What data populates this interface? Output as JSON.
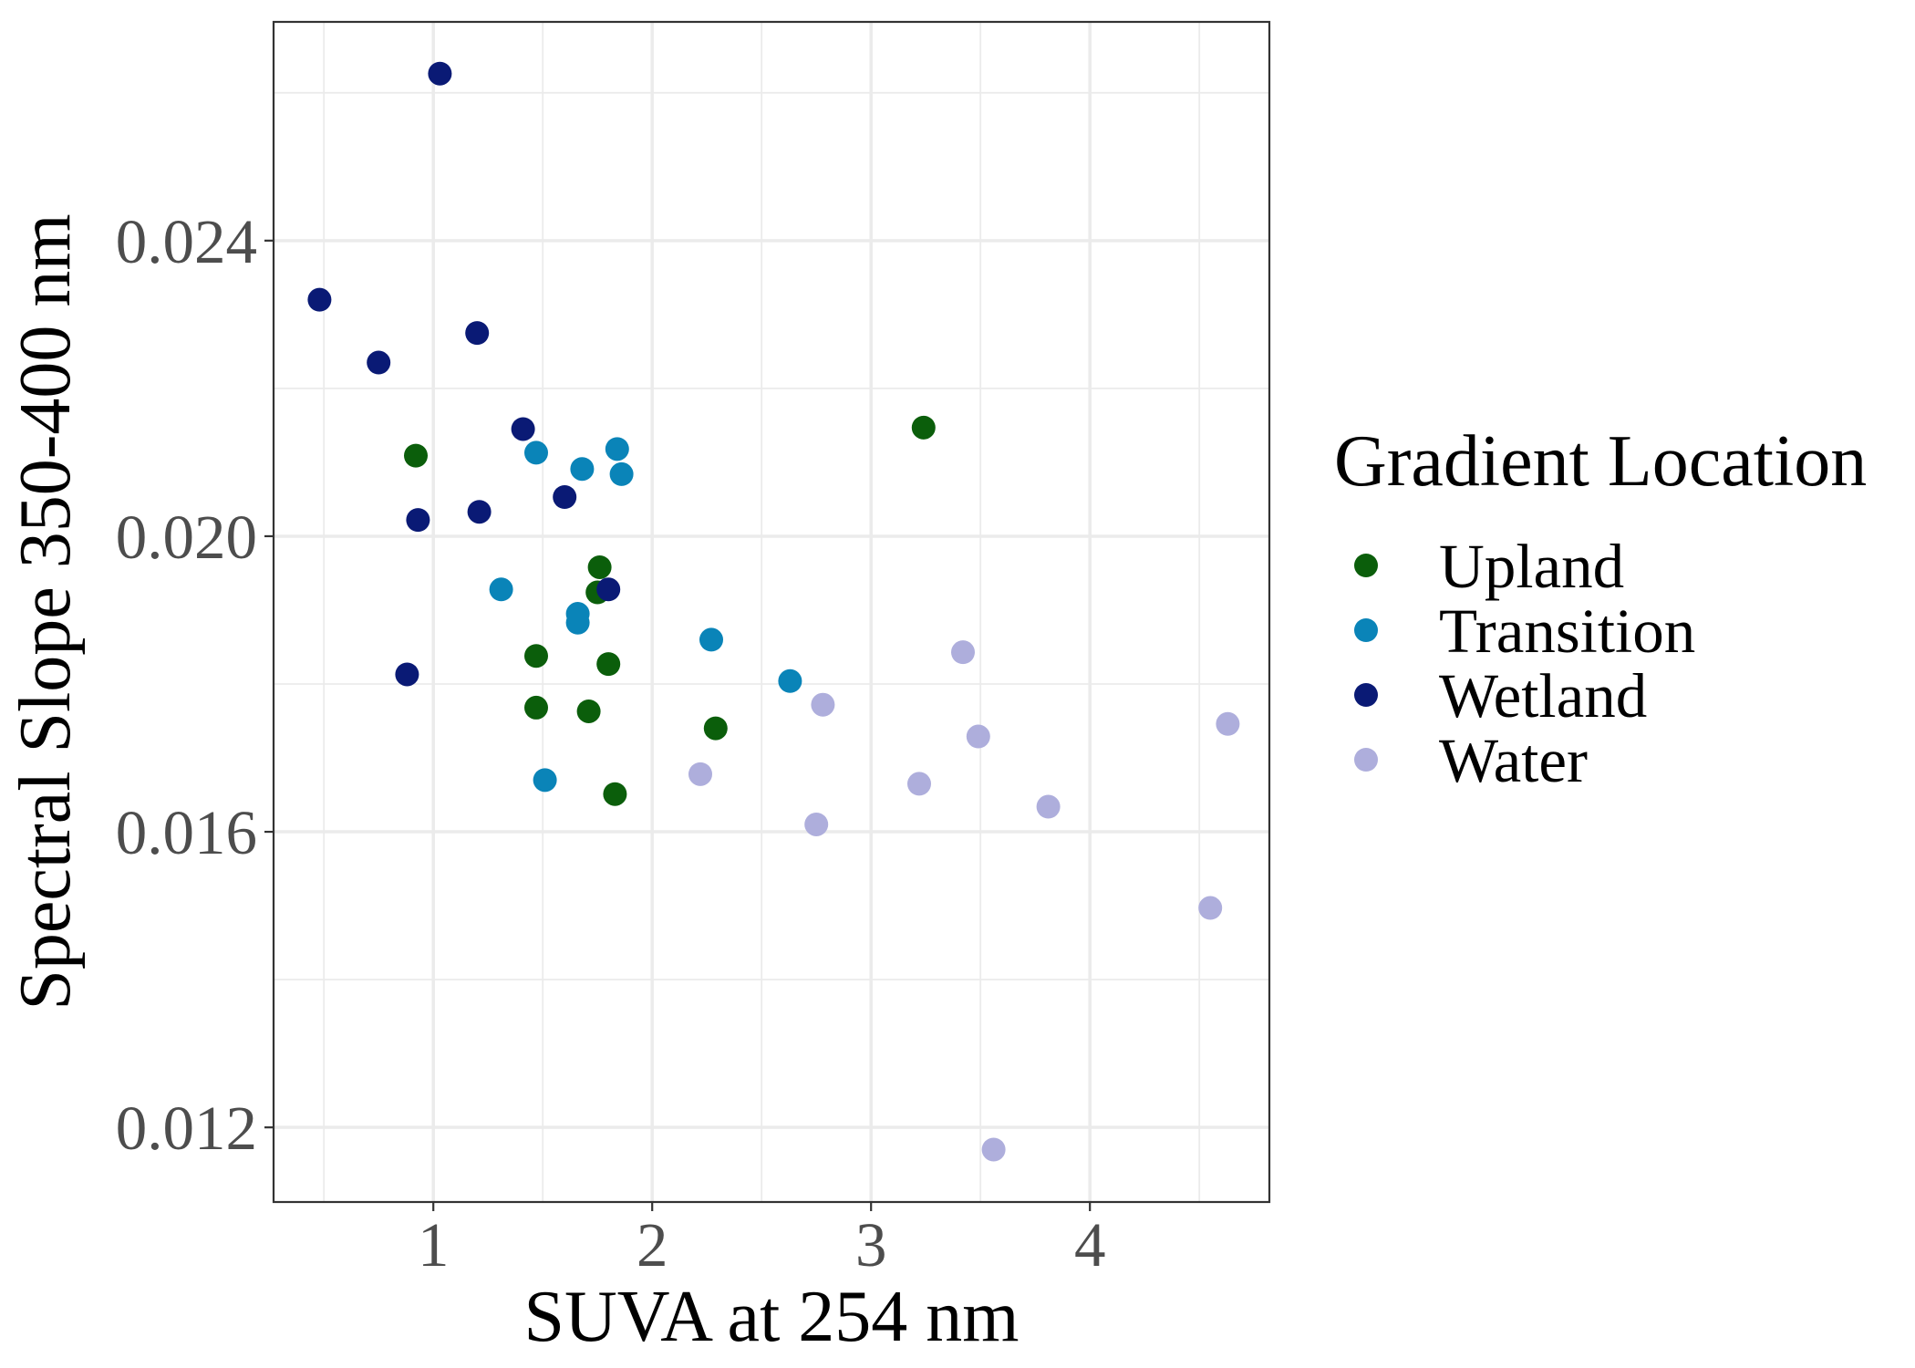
{
  "chart_data": {
    "type": "scatter",
    "title": "",
    "xlabel": "SUVA at 254 nm",
    "ylabel": "Spectral Slope 350-400 nm",
    "xlim": [
      0.27,
      4.82
    ],
    "ylim": [
      0.01099,
      0.02696
    ],
    "x_ticks": [
      1,
      2,
      3,
      4
    ],
    "x_tick_labels": [
      "1",
      "2",
      "3",
      "4"
    ],
    "x_minor_ticks": [
      0.5,
      1.5,
      2.5,
      3.5,
      4.5
    ],
    "y_ticks": [
      0.012,
      0.016,
      0.02,
      0.024
    ],
    "y_tick_labels": [
      "0.012",
      "0.016",
      "0.020",
      "0.024"
    ],
    "y_minor_ticks": [
      0.014,
      0.018,
      0.022,
      0.026
    ],
    "grid": true,
    "legend": {
      "title": "Gradient Location",
      "placement": "right"
    },
    "series": [
      {
        "name": "Upland",
        "color": "#0b5e0b",
        "points": [
          {
            "x": 0.92,
            "y": 0.02109
          },
          {
            "x": 1.47,
            "y": 0.01838
          },
          {
            "x": 1.47,
            "y": 0.01768
          },
          {
            "x": 1.71,
            "y": 0.01763
          },
          {
            "x": 1.75,
            "y": 0.01924
          },
          {
            "x": 1.76,
            "y": 0.01958
          },
          {
            "x": 1.8,
            "y": 0.01827
          },
          {
            "x": 1.83,
            "y": 0.01651
          },
          {
            "x": 2.29,
            "y": 0.0174
          },
          {
            "x": 3.24,
            "y": 0.02147
          }
        ]
      },
      {
        "name": "Transition",
        "color": "#0a84b8",
        "points": [
          {
            "x": 1.31,
            "y": 0.01928
          },
          {
            "x": 1.47,
            "y": 0.02113
          },
          {
            "x": 1.51,
            "y": 0.0167
          },
          {
            "x": 1.66,
            "y": 0.01883
          },
          {
            "x": 1.66,
            "y": 0.01895
          },
          {
            "x": 1.68,
            "y": 0.02091
          },
          {
            "x": 1.84,
            "y": 0.02118
          },
          {
            "x": 1.86,
            "y": 0.02084
          },
          {
            "x": 2.27,
            "y": 0.0186
          },
          {
            "x": 2.63,
            "y": 0.01804
          }
        ]
      },
      {
        "name": "Wetland",
        "color": "#0a1a75",
        "points": [
          {
            "x": 0.48,
            "y": 0.0232
          },
          {
            "x": 0.75,
            "y": 0.02235
          },
          {
            "x": 0.88,
            "y": 0.01813
          },
          {
            "x": 0.93,
            "y": 0.02022
          },
          {
            "x": 1.03,
            "y": 0.02626
          },
          {
            "x": 1.2,
            "y": 0.02275
          },
          {
            "x": 1.21,
            "y": 0.02033
          },
          {
            "x": 1.41,
            "y": 0.02145
          },
          {
            "x": 1.6,
            "y": 0.02053
          },
          {
            "x": 1.8,
            "y": 0.01928
          }
        ]
      },
      {
        "name": "Water",
        "color": "#aeaedc",
        "points": [
          {
            "x": 2.22,
            "y": 0.01678
          },
          {
            "x": 2.75,
            "y": 0.0161
          },
          {
            "x": 2.78,
            "y": 0.01772
          },
          {
            "x": 3.22,
            "y": 0.01665
          },
          {
            "x": 3.42,
            "y": 0.01843
          },
          {
            "x": 3.49,
            "y": 0.01729
          },
          {
            "x": 3.56,
            "y": 0.0117
          },
          {
            "x": 3.81,
            "y": 0.01634
          },
          {
            "x": 4.55,
            "y": 0.01497
          },
          {
            "x": 4.63,
            "y": 0.01746
          }
        ]
      }
    ]
  }
}
